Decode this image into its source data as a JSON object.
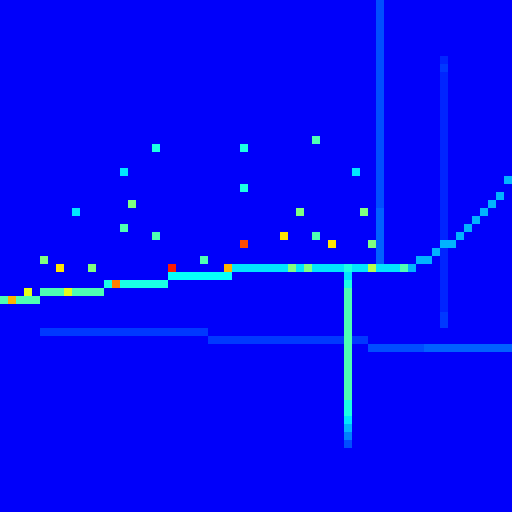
{
  "chart_data": {
    "type": "heatmap",
    "tick_labels": false,
    "xlim": [
      0,
      64
    ],
    "ylim": [
      0,
      64
    ],
    "xticks": [],
    "yticks": [],
    "color_range": [
      0,
      1
    ],
    "background_value": 0.12,
    "cells": [
      [
        0,
        37,
        0.45
      ],
      [
        1,
        37,
        0.7
      ],
      [
        2,
        37,
        0.45
      ],
      [
        3,
        37,
        0.45
      ],
      [
        4,
        37,
        0.45
      ],
      [
        5,
        36,
        0.45
      ],
      [
        6,
        36,
        0.45
      ],
      [
        7,
        36,
        0.45
      ],
      [
        8,
        36,
        0.6
      ],
      [
        9,
        36,
        0.45
      ],
      [
        10,
        36,
        0.45
      ],
      [
        11,
        36,
        0.45
      ],
      [
        12,
        36,
        0.45
      ],
      [
        13,
        35,
        0.4
      ],
      [
        14,
        35,
        0.75
      ],
      [
        15,
        35,
        0.4
      ],
      [
        16,
        35,
        0.4
      ],
      [
        17,
        35,
        0.4
      ],
      [
        18,
        35,
        0.4
      ],
      [
        19,
        35,
        0.4
      ],
      [
        20,
        35,
        0.4
      ],
      [
        21,
        34,
        0.38
      ],
      [
        22,
        34,
        0.38
      ],
      [
        23,
        34,
        0.38
      ],
      [
        24,
        34,
        0.38
      ],
      [
        25,
        34,
        0.38
      ],
      [
        26,
        34,
        0.38
      ],
      [
        27,
        34,
        0.38
      ],
      [
        28,
        34,
        0.38
      ],
      [
        29,
        33,
        0.35
      ],
      [
        30,
        33,
        0.35
      ],
      [
        31,
        33,
        0.35
      ],
      [
        32,
        33,
        0.35
      ],
      [
        33,
        33,
        0.35
      ],
      [
        34,
        33,
        0.35
      ],
      [
        35,
        33,
        0.35
      ],
      [
        36,
        33,
        0.5
      ],
      [
        37,
        33,
        0.35
      ],
      [
        38,
        33,
        0.5
      ],
      [
        39,
        33,
        0.35
      ],
      [
        40,
        33,
        0.35
      ],
      [
        41,
        33,
        0.35
      ],
      [
        42,
        33,
        0.35
      ],
      [
        43,
        33,
        0.4
      ],
      [
        44,
        33,
        0.35
      ],
      [
        45,
        33,
        0.35
      ],
      [
        46,
        33,
        0.55
      ],
      [
        47,
        33,
        0.35
      ],
      [
        48,
        33,
        0.35
      ],
      [
        49,
        33,
        0.35
      ],
      [
        50,
        33,
        0.45
      ],
      [
        51,
        33,
        0.3
      ],
      [
        52,
        32,
        0.3
      ],
      [
        53,
        32,
        0.3
      ],
      [
        54,
        31,
        0.3
      ],
      [
        55,
        30,
        0.3
      ],
      [
        56,
        30,
        0.3
      ],
      [
        57,
        29,
        0.3
      ],
      [
        58,
        28,
        0.3
      ],
      [
        59,
        27,
        0.3
      ],
      [
        60,
        26,
        0.3
      ],
      [
        61,
        25,
        0.3
      ],
      [
        62,
        24,
        0.3
      ],
      [
        63,
        22,
        0.3
      ],
      [
        5,
        41,
        0.18
      ],
      [
        6,
        41,
        0.18
      ],
      [
        7,
        41,
        0.18
      ],
      [
        8,
        41,
        0.18
      ],
      [
        9,
        41,
        0.18
      ],
      [
        10,
        41,
        0.18
      ],
      [
        11,
        41,
        0.18
      ],
      [
        12,
        41,
        0.18
      ],
      [
        13,
        41,
        0.18
      ],
      [
        14,
        41,
        0.18
      ],
      [
        15,
        41,
        0.18
      ],
      [
        16,
        41,
        0.18
      ],
      [
        17,
        41,
        0.18
      ],
      [
        18,
        41,
        0.18
      ],
      [
        19,
        41,
        0.18
      ],
      [
        20,
        41,
        0.18
      ],
      [
        21,
        41,
        0.18
      ],
      [
        22,
        41,
        0.18
      ],
      [
        23,
        41,
        0.18
      ],
      [
        24,
        41,
        0.18
      ],
      [
        25,
        41,
        0.18
      ],
      [
        26,
        42,
        0.18
      ],
      [
        27,
        42,
        0.18
      ],
      [
        28,
        42,
        0.18
      ],
      [
        29,
        42,
        0.18
      ],
      [
        30,
        42,
        0.18
      ],
      [
        31,
        42,
        0.18
      ],
      [
        32,
        42,
        0.18
      ],
      [
        33,
        42,
        0.18
      ],
      [
        34,
        42,
        0.18
      ],
      [
        35,
        42,
        0.18
      ],
      [
        36,
        42,
        0.18
      ],
      [
        37,
        42,
        0.18
      ],
      [
        38,
        42,
        0.18
      ],
      [
        39,
        42,
        0.18
      ],
      [
        40,
        42,
        0.18
      ],
      [
        41,
        42,
        0.18
      ],
      [
        42,
        42,
        0.18
      ],
      [
        44,
        42,
        0.18
      ],
      [
        45,
        42,
        0.18
      ],
      [
        46,
        43,
        0.2
      ],
      [
        47,
        43,
        0.2
      ],
      [
        48,
        43,
        0.2
      ],
      [
        49,
        43,
        0.2
      ],
      [
        50,
        43,
        0.2
      ],
      [
        51,
        43,
        0.2
      ],
      [
        52,
        43,
        0.2
      ],
      [
        53,
        43,
        0.22
      ],
      [
        54,
        43,
        0.22
      ],
      [
        55,
        43,
        0.22
      ],
      [
        56,
        43,
        0.22
      ],
      [
        57,
        43,
        0.22
      ],
      [
        58,
        43,
        0.22
      ],
      [
        59,
        43,
        0.22
      ],
      [
        60,
        43,
        0.22
      ],
      [
        61,
        43,
        0.22
      ],
      [
        62,
        43,
        0.22
      ],
      [
        63,
        43,
        0.22
      ],
      [
        3,
        36,
        0.6
      ],
      [
        5,
        32,
        0.5
      ],
      [
        7,
        33,
        0.65
      ],
      [
        9,
        26,
        0.35
      ],
      [
        11,
        33,
        0.5
      ],
      [
        16,
        25,
        0.5
      ],
      [
        15,
        28,
        0.45
      ],
      [
        19,
        29,
        0.45
      ],
      [
        21,
        33,
        0.85
      ],
      [
        30,
        30,
        0.8
      ],
      [
        28,
        33,
        0.7
      ],
      [
        30,
        18,
        0.4
      ],
      [
        30,
        23,
        0.4
      ],
      [
        35,
        29,
        0.65
      ],
      [
        37,
        26,
        0.5
      ],
      [
        39,
        17,
        0.45
      ],
      [
        39,
        29,
        0.45
      ],
      [
        41,
        30,
        0.65
      ],
      [
        45,
        26,
        0.5
      ],
      [
        46,
        30,
        0.5
      ],
      [
        44,
        21,
        0.35
      ],
      [
        19,
        18,
        0.4
      ],
      [
        15,
        21,
        0.35
      ],
      [
        25,
        32,
        0.45
      ],
      [
        43,
        34,
        0.35
      ],
      [
        43,
        35,
        0.4
      ],
      [
        43,
        36,
        0.45
      ],
      [
        43,
        37,
        0.45
      ],
      [
        43,
        38,
        0.45
      ],
      [
        43,
        39,
        0.45
      ],
      [
        43,
        40,
        0.45
      ],
      [
        43,
        41,
        0.45
      ],
      [
        43,
        42,
        0.45
      ],
      [
        43,
        43,
        0.45
      ],
      [
        43,
        44,
        0.45
      ],
      [
        43,
        45,
        0.45
      ],
      [
        43,
        46,
        0.45
      ],
      [
        43,
        47,
        0.45
      ],
      [
        43,
        48,
        0.45
      ],
      [
        43,
        49,
        0.45
      ],
      [
        43,
        50,
        0.4
      ],
      [
        43,
        51,
        0.4
      ],
      [
        43,
        52,
        0.35
      ],
      [
        43,
        53,
        0.3
      ],
      [
        43,
        54,
        0.25
      ],
      [
        43,
        55,
        0.2
      ],
      [
        47,
        0,
        0.2
      ],
      [
        47,
        1,
        0.2
      ],
      [
        47,
        2,
        0.2
      ],
      [
        47,
        3,
        0.2
      ],
      [
        47,
        4,
        0.2
      ],
      [
        47,
        5,
        0.2
      ],
      [
        47,
        6,
        0.2
      ],
      [
        47,
        7,
        0.2
      ],
      [
        47,
        8,
        0.2
      ],
      [
        47,
        9,
        0.2
      ],
      [
        47,
        10,
        0.2
      ],
      [
        47,
        11,
        0.2
      ],
      [
        47,
        12,
        0.2
      ],
      [
        47,
        13,
        0.2
      ],
      [
        47,
        14,
        0.2
      ],
      [
        47,
        15,
        0.2
      ],
      [
        47,
        16,
        0.2
      ],
      [
        47,
        17,
        0.2
      ],
      [
        47,
        18,
        0.2
      ],
      [
        47,
        19,
        0.2
      ],
      [
        47,
        20,
        0.2
      ],
      [
        47,
        21,
        0.2
      ],
      [
        47,
        22,
        0.2
      ],
      [
        47,
        23,
        0.2
      ],
      [
        47,
        24,
        0.2
      ],
      [
        47,
        25,
        0.2
      ],
      [
        47,
        26,
        0.22
      ],
      [
        47,
        27,
        0.22
      ],
      [
        47,
        28,
        0.22
      ],
      [
        47,
        29,
        0.22
      ],
      [
        47,
        30,
        0.22
      ],
      [
        47,
        31,
        0.22
      ],
      [
        47,
        32,
        0.22
      ],
      [
        55,
        7,
        0.16
      ],
      [
        55,
        8,
        0.18
      ],
      [
        55,
        9,
        0.16
      ],
      [
        55,
        10,
        0.16
      ],
      [
        55,
        11,
        0.16
      ],
      [
        55,
        12,
        0.16
      ],
      [
        55,
        13,
        0.16
      ],
      [
        55,
        14,
        0.16
      ],
      [
        55,
        15,
        0.16
      ],
      [
        55,
        16,
        0.16
      ],
      [
        55,
        17,
        0.16
      ],
      [
        55,
        18,
        0.16
      ],
      [
        55,
        19,
        0.16
      ],
      [
        55,
        20,
        0.16
      ],
      [
        55,
        21,
        0.16
      ],
      [
        55,
        22,
        0.16
      ],
      [
        55,
        23,
        0.16
      ],
      [
        55,
        24,
        0.16
      ],
      [
        55,
        25,
        0.16
      ],
      [
        55,
        26,
        0.16
      ],
      [
        55,
        27,
        0.16
      ],
      [
        55,
        28,
        0.16
      ],
      [
        55,
        29,
        0.16
      ],
      [
        55,
        31,
        0.16
      ],
      [
        55,
        32,
        0.16
      ],
      [
        55,
        33,
        0.16
      ],
      [
        55,
        34,
        0.16
      ],
      [
        55,
        35,
        0.16
      ],
      [
        55,
        36,
        0.16
      ],
      [
        55,
        37,
        0.16
      ],
      [
        55,
        38,
        0.16
      ],
      [
        55,
        39,
        0.18
      ],
      [
        55,
        40,
        0.18
      ]
    ]
  }
}
